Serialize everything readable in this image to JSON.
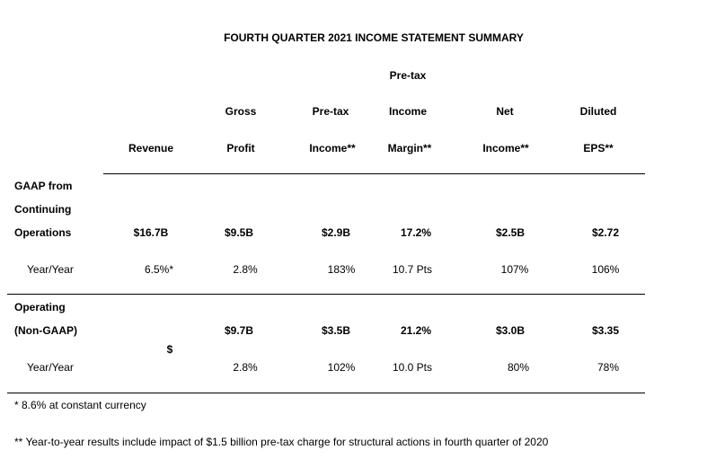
{
  "title": "FOURTH QUARTER 2021 INCOME STATEMENT SUMMARY",
  "headers": {
    "revenue": [
      "Revenue"
    ],
    "gross_profit": [
      "Gross",
      "Profit"
    ],
    "pretax_income": [
      "Pre-tax",
      "Income**"
    ],
    "pretax_margin": [
      "Pre-tax",
      "Income",
      "Margin**"
    ],
    "net_income": [
      "Net",
      "Income**"
    ],
    "diluted_eps": [
      "Diluted",
      "EPS**"
    ]
  },
  "gaap": {
    "label": [
      "GAAP from",
      "Continuing",
      "Operations"
    ],
    "values": [
      "$16.7B",
      "$9.5B",
      "$2.9B",
      "17.2%",
      "$2.5B",
      "$2.72"
    ],
    "yoy_label": "Year/Year",
    "yoy": [
      "6.5%*",
      "2.8%",
      "183%",
      "10.7 Pts",
      "107%",
      "106%"
    ]
  },
  "operating": {
    "label": [
      "Operating",
      "(Non-GAAP)"
    ],
    "revenue_symbol": "$",
    "values": [
      "$9.7B",
      "$3.5B",
      "21.2%",
      "$3.0B",
      "$3.35"
    ],
    "yoy_label": "Year/Year",
    "yoy": [
      "2.8%",
      "102%",
      "10.0 Pts",
      "80%",
      "78%"
    ]
  },
  "footnotes": [
    "* 8.6% at constant currency",
    "** Year-to-year results include impact of $1.5 billion pre-tax charge for structural actions in fourth quarter of 2020"
  ]
}
